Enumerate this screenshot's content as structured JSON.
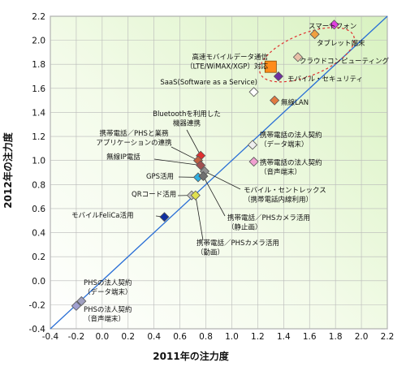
{
  "chart_data": {
    "type": "scatter",
    "xlabel": "2011年の注力度",
    "ylabel": "2012年の注力度",
    "xlim": [
      -0.4,
      2.2
    ],
    "ylim": [
      -0.4,
      2.2
    ],
    "xticks": [
      "-0.4",
      "-0.2",
      "0.0",
      "0.2",
      "0.4",
      "0.6",
      "0.8",
      "1.0",
      "1.2",
      "1.4",
      "1.6",
      "1.8",
      "2.0",
      "2.2"
    ],
    "yticks": [
      "-0.4",
      "-0.2",
      "0.0",
      "0.2",
      "0.4",
      "0.6",
      "0.8",
      "1.0",
      "1.2",
      "1.4",
      "1.6",
      "1.8",
      "2.0",
      "2.2"
    ],
    "grid": true,
    "reference_line": "y = x",
    "highlight": "dashed ellipse around the top-right group",
    "points": [
      {
        "label": [
          "スマートフォン"
        ],
        "x": 1.79,
        "y": 2.13,
        "color": "#e040e0"
      },
      {
        "label": [
          "タブレット端末"
        ],
        "x": 1.64,
        "y": 2.05,
        "color": "#f0a040"
      },
      {
        "label": [
          "高速モバイルデータ通信",
          "（LTE/WiMAX/XGP）対応"
        ],
        "x": 1.3,
        "y": 1.78,
        "color": "#ff8c1a",
        "shape": "square"
      },
      {
        "label": [
          "クラウドコンピューティング"
        ],
        "x": 1.51,
        "y": 1.86,
        "color": "#e8c0a8"
      },
      {
        "label": [
          "モバイル・セキュリティ"
        ],
        "x": 1.36,
        "y": 1.7,
        "color": "#7030a0"
      },
      {
        "label": [
          "SaaS(Software as a Service)"
        ],
        "x": 1.17,
        "y": 1.57,
        "color": "#ffffff"
      },
      {
        "label": [
          "無線LAN"
        ],
        "x": 1.33,
        "y": 1.5,
        "color": "#e07a40"
      },
      {
        "label": [
          "携帯電話の法人契約",
          "（データ端末）"
        ],
        "x": 1.16,
        "y": 1.13,
        "color": "#eeeeee"
      },
      {
        "label": [
          "携帯電話の法人契約",
          "（音声端末）"
        ],
        "x": 1.17,
        "y": 0.99,
        "color": "#f0a0d0"
      },
      {
        "label": [
          "Bluetoothを利用した",
          "機器連携"
        ],
        "x": 0.76,
        "y": 1.04,
        "color": "#e03030"
      },
      {
        "label": [
          "携帯電話／PHSと業務",
          "アプリケーションの連携"
        ],
        "x": 0.74,
        "y": 1.0,
        "color": "#c06040"
      },
      {
        "label": [
          "無線IP電話"
        ],
        "x": 0.76,
        "y": 0.96,
        "color": "#a05050"
      },
      {
        "label": [
          "GPS活用"
        ],
        "x": 0.74,
        "y": 0.86,
        "color": "#30b0e0"
      },
      {
        "label": [
          "モバイル・セントレックス",
          "（携帯電話内線利用）"
        ],
        "x": 0.79,
        "y": 0.91,
        "color": "#909090"
      },
      {
        "label": [
          "携帯電話／PHSカメラ活用",
          "（静止画）"
        ],
        "x": 0.78,
        "y": 0.87,
        "color": "#707070"
      },
      {
        "label": [
          "QRコード活用"
        ],
        "x": 0.69,
        "y": 0.71,
        "color": "#c0c0c0"
      },
      {
        "label": [
          "携帯電話／PHSカメラ活用",
          "（動画）"
        ],
        "x": 0.72,
        "y": 0.71,
        "color": "#e0e050"
      },
      {
        "label": [
          "モバイルFeliCa活用"
        ],
        "x": 0.48,
        "y": 0.53,
        "color": "#1030a0"
      },
      {
        "label": [
          "PHSの法人契約",
          "（データ端末）"
        ],
        "x": -0.16,
        "y": -0.17,
        "color": "#a0a0c0"
      },
      {
        "label": [
          "PHSの法人契約",
          "（音声端末）"
        ],
        "x": -0.2,
        "y": -0.21,
        "color": "#a0a0d0"
      }
    ]
  }
}
